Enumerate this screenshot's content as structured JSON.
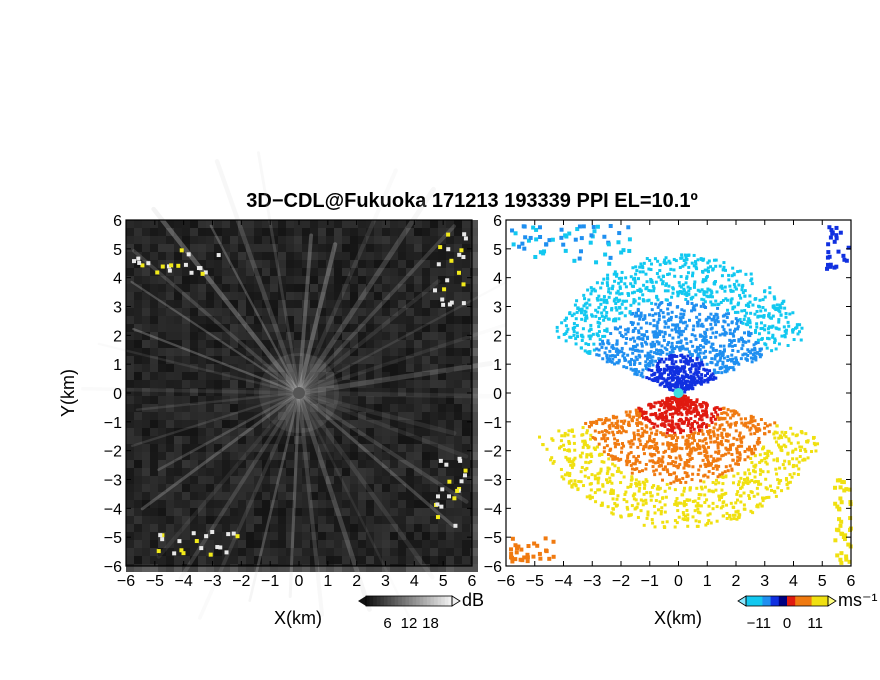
{
  "title": "3D−CDL@Fukuoka 171213 193339 PPI EL=10.1º",
  "chart_data": [
    {
      "type": "heatmap",
      "panel": "reflectivity",
      "xlabel": "X(km)",
      "ylabel": "Y(km)",
      "xlim": [
        -6,
        6
      ],
      "ylim": [
        -6,
        6
      ],
      "x_ticks": [
        "−6",
        "−5",
        "−4",
        "−3",
        "−2",
        "−1",
        "0",
        "1",
        "2",
        "3",
        "4",
        "5",
        "6"
      ],
      "y_ticks": [
        "6",
        "5",
        "4",
        "3",
        "2",
        "1",
        "0",
        "−1",
        "−2",
        "−3",
        "−4",
        "−5",
        "−6"
      ],
      "colorbar": {
        "unit": "dB",
        "ticks": [
          "6",
          "12",
          "18"
        ],
        "range": [
          0,
          24
        ],
        "colormap": "grayscale"
      },
      "highlight_color": "#f2ea1a",
      "beam_count": 36
    },
    {
      "type": "heatmap",
      "panel": "doppler_velocity",
      "xlabel": "X(km)",
      "xlim": [
        -6,
        6
      ],
      "ylim": [
        -6,
        6
      ],
      "x_ticks": [
        "−6",
        "−5",
        "−4",
        "−3",
        "−2",
        "−1",
        "0",
        "1",
        "2",
        "3",
        "4",
        "5",
        "6"
      ],
      "y_ticks": [
        "6",
        "5",
        "4",
        "3",
        "2",
        "1",
        "0",
        "−1",
        "−2",
        "−3",
        "−4",
        "−5",
        "−6"
      ],
      "colorbar": {
        "unit": "ms⁻¹",
        "ticks": [
          "−11",
          "0",
          "11"
        ],
        "range": [
          -16,
          16
        ],
        "colors": {
          "approaching": [
            "#12c8f0",
            "#1f8ff0",
            "#1030e0"
          ],
          "receding": [
            "#e01a10",
            "#f07a10",
            "#f0e010"
          ]
        }
      }
    }
  ]
}
